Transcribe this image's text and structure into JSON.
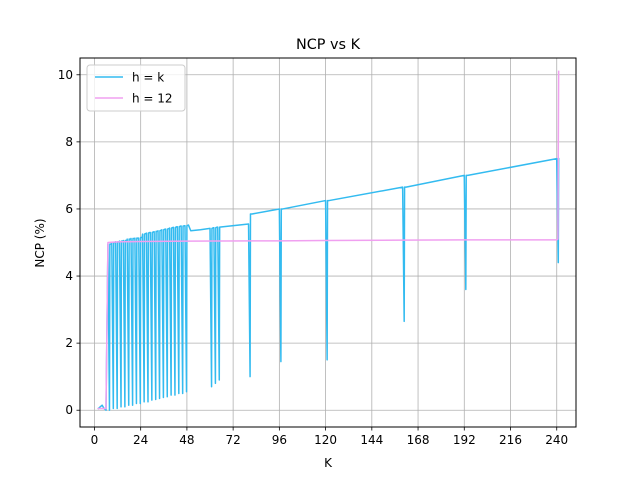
{
  "chart_data": {
    "type": "line",
    "title": "NCP vs K",
    "xlabel": "K",
    "ylabel": "NCP (%)",
    "xlim": [
      -7.5,
      250
    ],
    "ylim": [
      -0.5,
      10.5
    ],
    "xticks": [
      0,
      24,
      48,
      72,
      96,
      120,
      144,
      168,
      192,
      216,
      240
    ],
    "yticks": [
      0,
      2,
      4,
      6,
      8,
      10
    ],
    "grid": true,
    "legend_position": "top-left",
    "series": [
      {
        "name": "h = k",
        "color": "#33bbf0",
        "x": [
          2,
          3,
          4,
          5,
          6,
          7,
          7.8,
          8,
          8.8,
          9,
          9.8,
          10,
          10.8,
          11,
          11.8,
          12,
          12.8,
          13,
          13.8,
          14,
          14.8,
          15,
          15.8,
          16,
          16.8,
          17,
          17.8,
          18,
          18.8,
          19,
          19.8,
          20,
          20.8,
          21,
          21.8,
          22,
          22.8,
          23,
          23.8,
          24,
          24.8,
          25,
          25.8,
          26,
          26.8,
          27,
          27.8,
          28,
          28.8,
          29,
          29.8,
          30,
          30.8,
          31,
          31.8,
          32,
          32.8,
          33,
          33.8,
          34,
          34.8,
          35,
          35.8,
          36,
          36.8,
          37,
          37.8,
          38,
          38.8,
          39,
          39.8,
          40,
          40.8,
          41,
          41.8,
          42,
          42.8,
          43,
          43.8,
          44,
          44.8,
          45,
          45.8,
          46,
          46.8,
          47,
          47.8,
          48,
          48.8,
          50,
          55,
          60,
          60.8,
          61,
          61.8,
          62,
          62.8,
          63,
          63.8,
          64,
          64.8,
          65,
          80,
          80.8,
          81,
          81.8,
          96,
          96.8,
          97,
          97.8,
          120,
          120.8,
          121,
          121.8,
          160,
          160.8,
          161,
          161.8,
          192,
          192.8,
          193,
          193.8,
          240,
          240.8,
          241
        ],
        "y": [
          0.05,
          0.1,
          0.15,
          0.05,
          0.0,
          4.95,
          0.0,
          4.95,
          4.95,
          5.0,
          0.05,
          5.0,
          5.0,
          5.02,
          0.05,
          5.02,
          5.02,
          5.04,
          0.1,
          5.04,
          5.04,
          5.06,
          0.1,
          5.06,
          5.06,
          5.1,
          0.15,
          5.1,
          5.1,
          5.12,
          0.15,
          5.12,
          5.12,
          5.13,
          0.2,
          5.13,
          5.13,
          5.13,
          0.2,
          5.15,
          5.15,
          5.25,
          0.25,
          5.25,
          5.27,
          5.28,
          0.25,
          5.28,
          5.3,
          5.3,
          0.3,
          5.3,
          5.32,
          5.32,
          0.32,
          5.33,
          5.33,
          5.35,
          0.35,
          5.35,
          5.37,
          5.38,
          0.38,
          5.38,
          5.4,
          5.4,
          0.4,
          5.4,
          5.42,
          5.43,
          0.45,
          5.43,
          5.45,
          5.45,
          0.45,
          5.45,
          5.47,
          5.47,
          0.5,
          5.47,
          5.49,
          5.49,
          0.5,
          5.49,
          5.5,
          5.5,
          0.55,
          5.5,
          5.52,
          5.35,
          5.38,
          5.42,
          0.7,
          5.42,
          5.44,
          5.44,
          0.8,
          5.44,
          5.46,
          5.46,
          0.9,
          5.46,
          5.55,
          1.0,
          5.85,
          5.85,
          6.0,
          1.45,
          6.0,
          6.0,
          6.25,
          1.5,
          6.25,
          6.25,
          6.65,
          2.65,
          6.65,
          6.65,
          7.0,
          3.6,
          7.0,
          7.0,
          7.5,
          4.4,
          7.5
        ]
      },
      {
        "name": "h = 12",
        "color": "#f0a0f0",
        "x": [
          2,
          6,
          7,
          12,
          24,
          48,
          96,
          120,
          160,
          192,
          220,
          240,
          240.6,
          241
        ],
        "y": [
          0.05,
          0.05,
          5.0,
          5.02,
          5.03,
          5.04,
          5.05,
          5.06,
          5.07,
          5.08,
          5.08,
          5.08,
          5.1,
          10.1
        ]
      }
    ]
  }
}
